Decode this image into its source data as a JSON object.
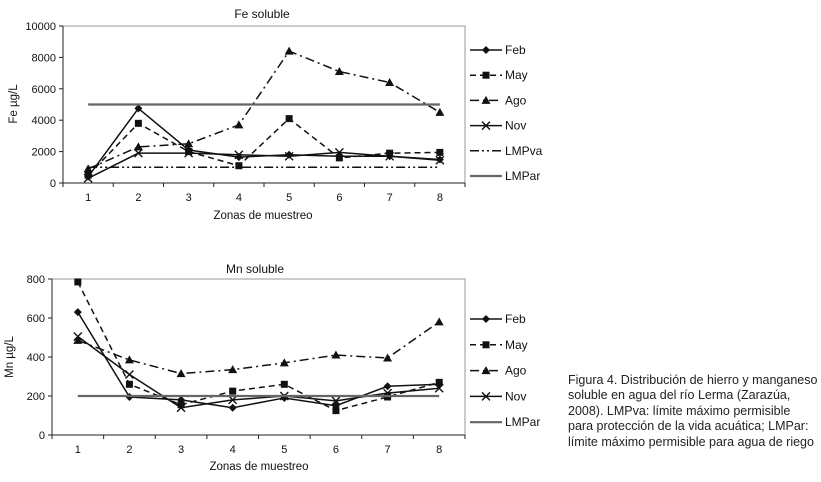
{
  "caption": "Figura 4. Distribución de hierro y manganeso soluble en agua del río Lerma (Zarazúa, 2008). LMPva: límite máximo permisible para protección de la vida acuática; LMPar: límite máximo permisible para agua de riego",
  "chart_data": [
    {
      "type": "line",
      "title": "Fe   soluble",
      "xlabel": "Zonas de muestreo",
      "ylabel": "Fe µg/L",
      "categories": [
        "1",
        "2",
        "3",
        "4",
        "5",
        "6",
        "7",
        "8"
      ],
      "ylim": [
        0,
        10000
      ],
      "yticks": [
        0,
        2000,
        4000,
        6000,
        8000,
        10000
      ],
      "ytick_labels": [
        "0",
        "2000",
        "4000",
        "6000",
        "8000",
        "10000"
      ],
      "grid": false,
      "legend_position": "right",
      "series": [
        {
          "name": "Feb",
          "values": [
            400,
            4750,
            2100,
            1650,
            1800,
            1700,
            1700,
            1500
          ],
          "dash": "solid",
          "marker": "diamond"
        },
        {
          "name": "May",
          "values": [
            500,
            3800,
            2000,
            1100,
            4100,
            1600,
            1900,
            1950
          ],
          "dash": "dash",
          "marker": "square"
        },
        {
          "name": "Ago",
          "values": [
            900,
            2300,
            2500,
            3700,
            8400,
            7100,
            6400,
            4500
          ],
          "dash": "dashdot",
          "marker": "triangle"
        },
        {
          "name": "Nov",
          "values": [
            300,
            1900,
            1900,
            1800,
            1700,
            1950,
            1700,
            1450
          ],
          "dash": "solid",
          "marker": "x"
        },
        {
          "name": "LMPva",
          "values": [
            1000,
            1000,
            1000,
            1000,
            1000,
            1000,
            1000,
            1000
          ],
          "dash": "dashdotdot",
          "marker": "none"
        },
        {
          "name": "LMPar",
          "values": [
            5000,
            5000,
            5000,
            5000,
            5000,
            5000,
            5000,
            5000
          ],
          "dash": "thick",
          "marker": "none"
        }
      ]
    },
    {
      "type": "line",
      "title": "Mn   soluble",
      "xlabel": "Zonas de muestreo",
      "ylabel": "Mn µg/L",
      "categories": [
        "1",
        "2",
        "3",
        "4",
        "5",
        "6",
        "7",
        "8"
      ],
      "ylim": [
        0,
        800
      ],
      "yticks": [
        0,
        200,
        400,
        600,
        800
      ],
      "ytick_labels": [
        "0",
        "200",
        "400",
        "600",
        "800"
      ],
      "grid": false,
      "legend_position": "right",
      "series": [
        {
          "name": "Feb",
          "values": [
            630,
            195,
            180,
            140,
            190,
            150,
            250,
            260
          ],
          "dash": "solid",
          "marker": "diamond"
        },
        {
          "name": "May",
          "values": [
            785,
            260,
            155,
            225,
            260,
            125,
            195,
            270
          ],
          "dash": "dash",
          "marker": "square"
        },
        {
          "name": "Ago",
          "values": [
            485,
            385,
            315,
            335,
            370,
            410,
            395,
            580
          ],
          "dash": "dashdot",
          "marker": "triangle"
        },
        {
          "name": "Nov",
          "values": [
            505,
            310,
            140,
            180,
            200,
            175,
            215,
            240
          ],
          "dash": "solid",
          "marker": "x"
        },
        {
          "name": "LMPar",
          "values": [
            200,
            200,
            200,
            200,
            200,
            200,
            200,
            200
          ],
          "dash": "thick",
          "marker": "none"
        }
      ]
    }
  ]
}
